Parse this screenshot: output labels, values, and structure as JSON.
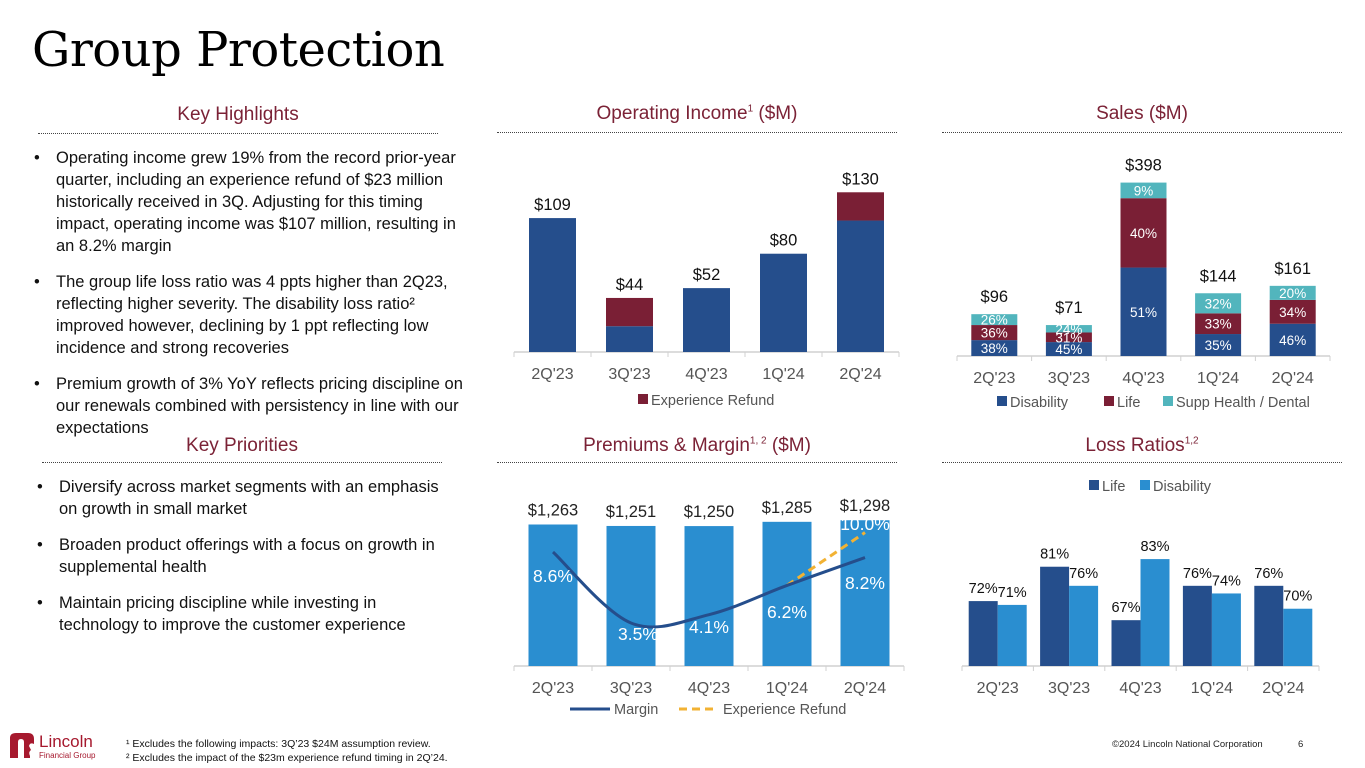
{
  "page": {
    "title": "Group Protection",
    "page_number": "6",
    "copyright": "©2024 Lincoln National Corporation",
    "logo": {
      "name": "Lincoln",
      "sub": "Financial Group",
      "color": "#a6192e"
    }
  },
  "colors": {
    "heading": "#7b2236",
    "navy": "#254e8c",
    "maroon": "#7a1f35",
    "teal": "#52b5bd",
    "sky": "#2a8ed0",
    "gold": "#f2b233"
  },
  "key_highlights": {
    "heading": "Key Highlights",
    "bullets": [
      "Operating income grew 19% from the record prior-year quarter, including an experience refund of $23 million historically received in 3Q. Adjusting for this timing impact, operating income was $107 million, resulting in an 8.2% margin",
      "The group life loss ratio was 4 ppts higher than 2Q23, reflecting higher severity. The disability loss ratio² improved however, declining by 1 ppt reflecting low incidence and strong recoveries",
      "Premium growth of 3% YoY reflects pricing discipline on our renewals combined with persistency in line with our expectations"
    ]
  },
  "key_priorities": {
    "heading": "Key Priorities",
    "bullets": [
      "Diversify across market segments with an emphasis on growth in small market",
      "Broaden product offerings with a focus on growth in supplemental health",
      "Maintain pricing discipline while investing in technology to improve the customer experience"
    ]
  },
  "footnotes": [
    "¹ Excludes the following impacts: 3Q’23 $24M assumption review.",
    "² Excludes the impact of the $23m experience refund timing in 2Q’24."
  ],
  "chart_data": [
    {
      "id": "operating_income",
      "type": "bar",
      "stacked": true,
      "title": "Operating Income¹ ($M)",
      "title_main": "Operating Income",
      "title_sup": "1",
      "title_tail": " ($M)",
      "categories": [
        "2Q'23",
        "3Q'23",
        "4Q'23",
        "1Q'24",
        "2Q'24"
      ],
      "series": [
        {
          "name": "Operating Income",
          "values": [
            109,
            21,
            52,
            80,
            107
          ],
          "color": "#254e8c",
          "in_legend": false
        },
        {
          "name": "Experience Refund",
          "values": [
            0,
            23,
            0,
            0,
            23
          ],
          "color": "#7a1f35",
          "in_legend": true
        }
      ],
      "totals": [
        109,
        44,
        52,
        80,
        130
      ],
      "total_labels": [
        "$109",
        "$44",
        "$52",
        "$80",
        "$130"
      ],
      "ylim": [
        0,
        140
      ],
      "grid": false,
      "legend": "bottom"
    },
    {
      "id": "sales",
      "type": "bar",
      "stacked": true,
      "title": "Sales ($M)",
      "categories": [
        "2Q'23",
        "3Q'23",
        "4Q'23",
        "1Q'24",
        "2Q'24"
      ],
      "totals": [
        96,
        71,
        398,
        144,
        161
      ],
      "total_labels": [
        "$96",
        "$71",
        "$398",
        "$144",
        "$161"
      ],
      "series": [
        {
          "name": "Disability",
          "percent": [
            38,
            45,
            51,
            35,
            46
          ],
          "labels": [
            "38%",
            "45%",
            "51%",
            "35%",
            "46%"
          ],
          "color": "#254e8c"
        },
        {
          "name": "Life",
          "percent": [
            36,
            31,
            40,
            33,
            34
          ],
          "labels": [
            "36%",
            "31%",
            "40%",
            "33%",
            "34%"
          ],
          "color": "#7a1f35"
        },
        {
          "name": "Supp Health / Dental",
          "percent": [
            26,
            24,
            9,
            32,
            20
          ],
          "labels": [
            "26%",
            "24%",
            "9%",
            "32%",
            "20%"
          ],
          "color": "#52b5bd"
        }
      ],
      "ylim": [
        0,
        420
      ],
      "grid": false,
      "legend": "bottom"
    },
    {
      "id": "premiums_margin",
      "type": "bar",
      "title": "Premiums & Margin¹˒² ($M)",
      "title_main": "Premiums & Margin",
      "title_sup": "1, 2",
      "title_tail": " ($M)",
      "categories": [
        "2Q'23",
        "3Q'23",
        "4Q'23",
        "1Q'24",
        "2Q'24"
      ],
      "bars": {
        "name": "Premiums",
        "values": [
          1263,
          1251,
          1250,
          1285,
          1298
        ],
        "labels": [
          "$1,263",
          "$1,251",
          "$1,250",
          "$1,285",
          "$1,298"
        ],
        "color": "#2a8ed0"
      },
      "lines": [
        {
          "name": "Margin",
          "values": [
            8.6,
            3.5,
            4.1,
            6.2,
            8.2
          ],
          "labels": [
            "8.6%",
            "3.5%",
            "4.1%",
            "6.2%",
            "8.2%"
          ],
          "color": "#254e8c",
          "style": "solid"
        },
        {
          "name": "Experience Refund",
          "x": [
            "1Q'24",
            "2Q'24"
          ],
          "values": [
            6.2,
            10.0
          ],
          "labels": [
            "",
            "10.0%"
          ],
          "color": "#f2b233",
          "style": "dashed"
        }
      ],
      "ylim_bars": [
        0,
        1300
      ],
      "ylim_margin": [
        0,
        12
      ],
      "grid": false,
      "legend": "bottom"
    },
    {
      "id": "loss_ratios",
      "type": "bar",
      "title": "Loss Ratios¹˒²",
      "title_main": "Loss Ratios",
      "title_sup": "1,2",
      "title_tail": "",
      "categories": [
        "2Q'23",
        "3Q'23",
        "4Q'23",
        "1Q'24",
        "2Q'24"
      ],
      "series": [
        {
          "name": "Life",
          "values": [
            72,
            81,
            67,
            76,
            76
          ],
          "labels": [
            "72%",
            "81%",
            "67%",
            "76%",
            "76%"
          ],
          "color": "#254e8c"
        },
        {
          "name": "Disability",
          "values": [
            71,
            76,
            83,
            74,
            70
          ],
          "labels": [
            "71%",
            "76%",
            "83%",
            "74%",
            "70%"
          ],
          "color": "#2a8ed0"
        }
      ],
      "ylim": [
        55,
        88
      ],
      "grid": false,
      "legend": "top"
    }
  ]
}
